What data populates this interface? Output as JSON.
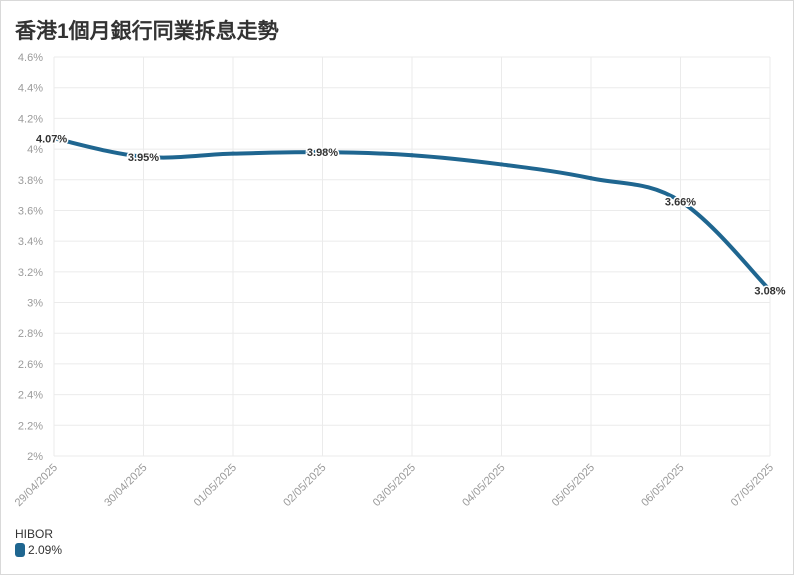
{
  "title": "香港1個月銀行同業拆息走勢",
  "colors": {
    "series": "#1f6690",
    "grid": "#ebebeb",
    "axis_text": "#9a9a9a",
    "label_text": "#333333"
  },
  "legend": {
    "title": "HIBOR",
    "value": "2.09%"
  },
  "chart_data": {
    "type": "line",
    "title": "香港1個月銀行同業拆息走勢",
    "xlabel": "",
    "ylabel": "",
    "x": [
      "29/04/2025",
      "30/04/2025",
      "01/05/2025",
      "02/05/2025",
      "03/05/2025",
      "04/05/2025",
      "05/05/2025",
      "06/05/2025",
      "07/05/2025"
    ],
    "ylim": [
      2,
      4.6
    ],
    "y_ticks": [
      "2%",
      "2.2%",
      "2.4%",
      "2.6%",
      "2.8%",
      "3%",
      "3.2%",
      "3.4%",
      "3.6%",
      "3.8%",
      "4%",
      "4.2%",
      "4.4%",
      "4.6%"
    ],
    "grid": true,
    "series": [
      {
        "name": "HIBOR",
        "values": [
          4.07,
          3.95,
          3.97,
          3.98,
          3.96,
          3.9,
          3.81,
          3.66,
          3.08
        ],
        "data_labels": [
          {
            "index": 0,
            "text": "4.07%"
          },
          {
            "index": 1,
            "text": "3.95%"
          },
          {
            "index": 3,
            "text": "3.98%"
          },
          {
            "index": 7,
            "text": "3.66%"
          },
          {
            "index": 8,
            "text": "3.08%"
          }
        ]
      }
    ]
  }
}
